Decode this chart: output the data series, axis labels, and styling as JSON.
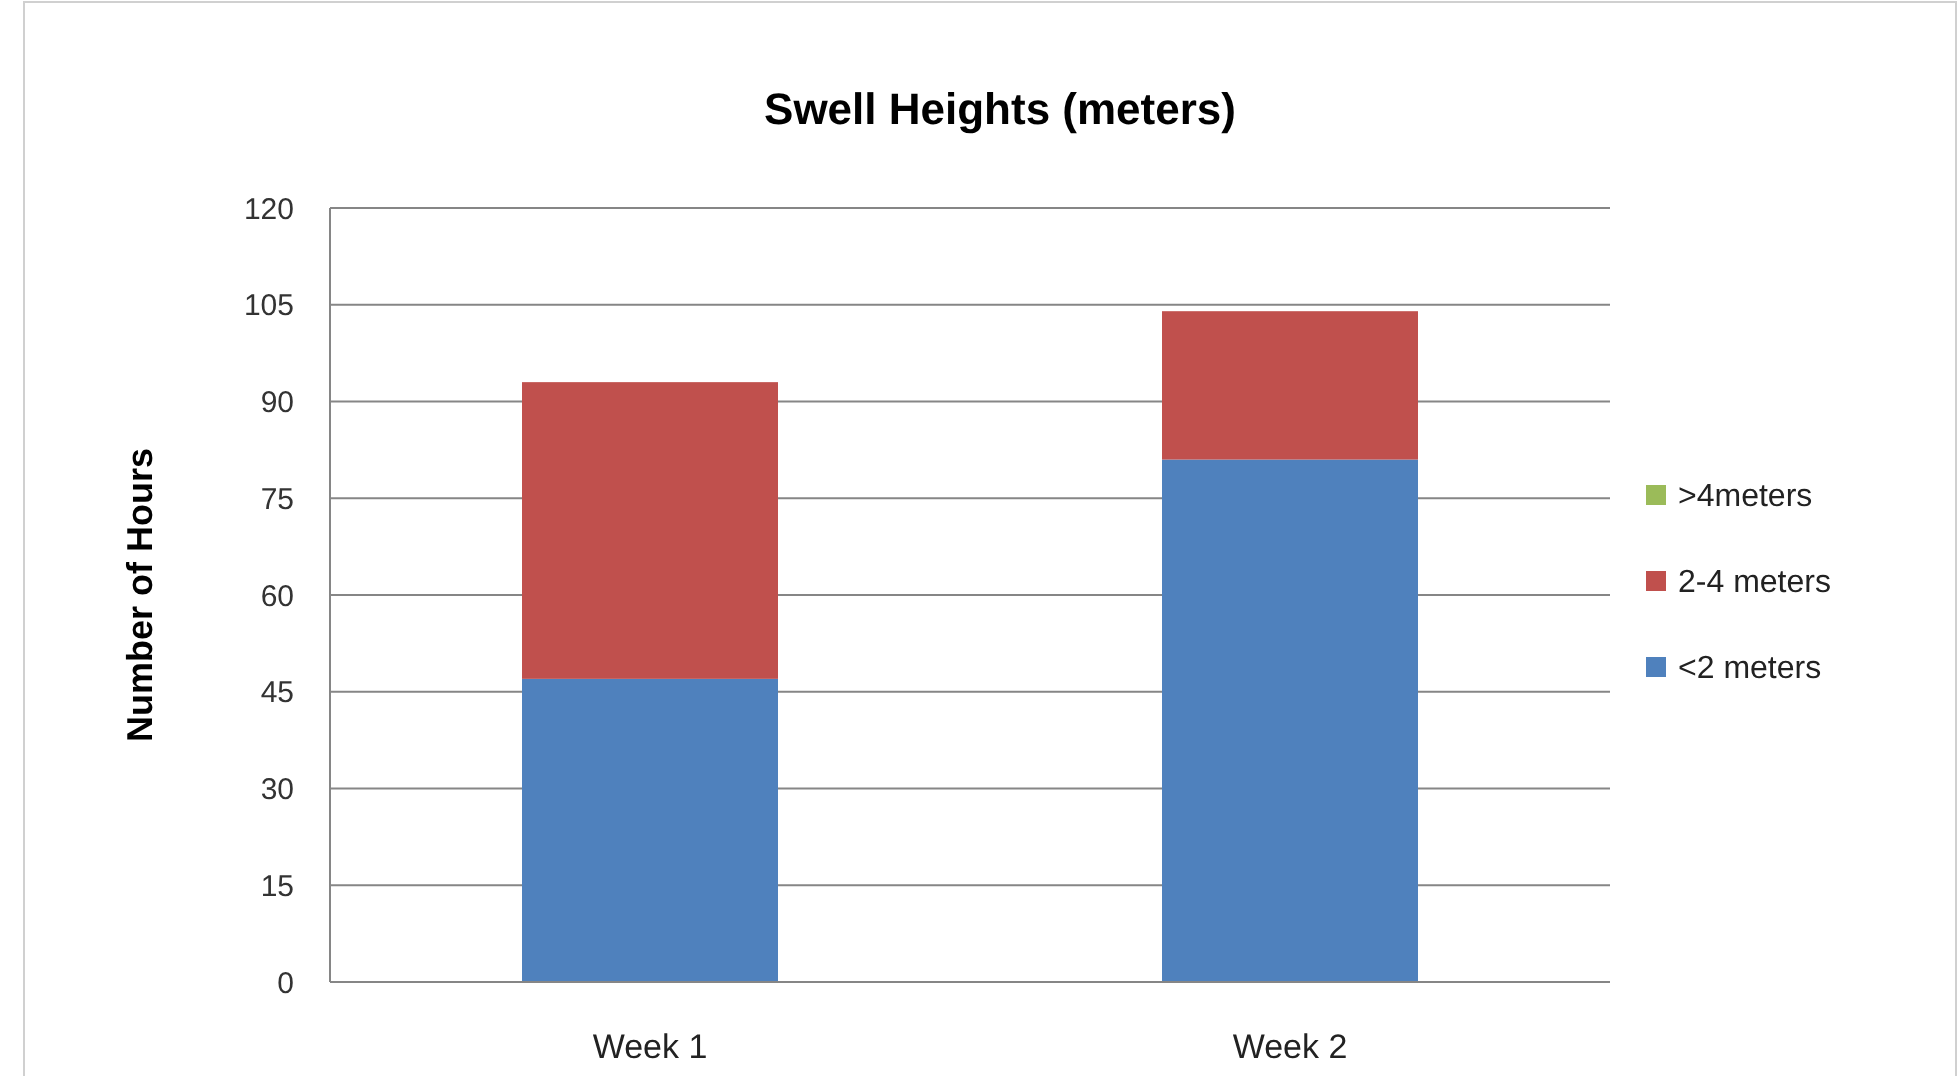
{
  "chart_data": {
    "type": "bar",
    "title": "Swell Heights (meters)",
    "ylabel": "Number of Hours",
    "categories": [
      "Week 1",
      "Week 2"
    ],
    "series": [
      {
        "name": "<2 meters",
        "color": "#4f81bd",
        "values": [
          47,
          81
        ]
      },
      {
        "name": "2-4 meters",
        "color": "#c0504d",
        "values": [
          46,
          23
        ]
      },
      {
        "name": ">4meters",
        "color": "#9bbb59",
        "values": [
          0,
          0
        ]
      }
    ],
    "stacked": true,
    "ylim": [
      0,
      120
    ],
    "yticks": [
      0,
      15,
      30,
      45,
      60,
      75,
      90,
      105,
      120
    ],
    "grid": "y",
    "legend": "right"
  }
}
